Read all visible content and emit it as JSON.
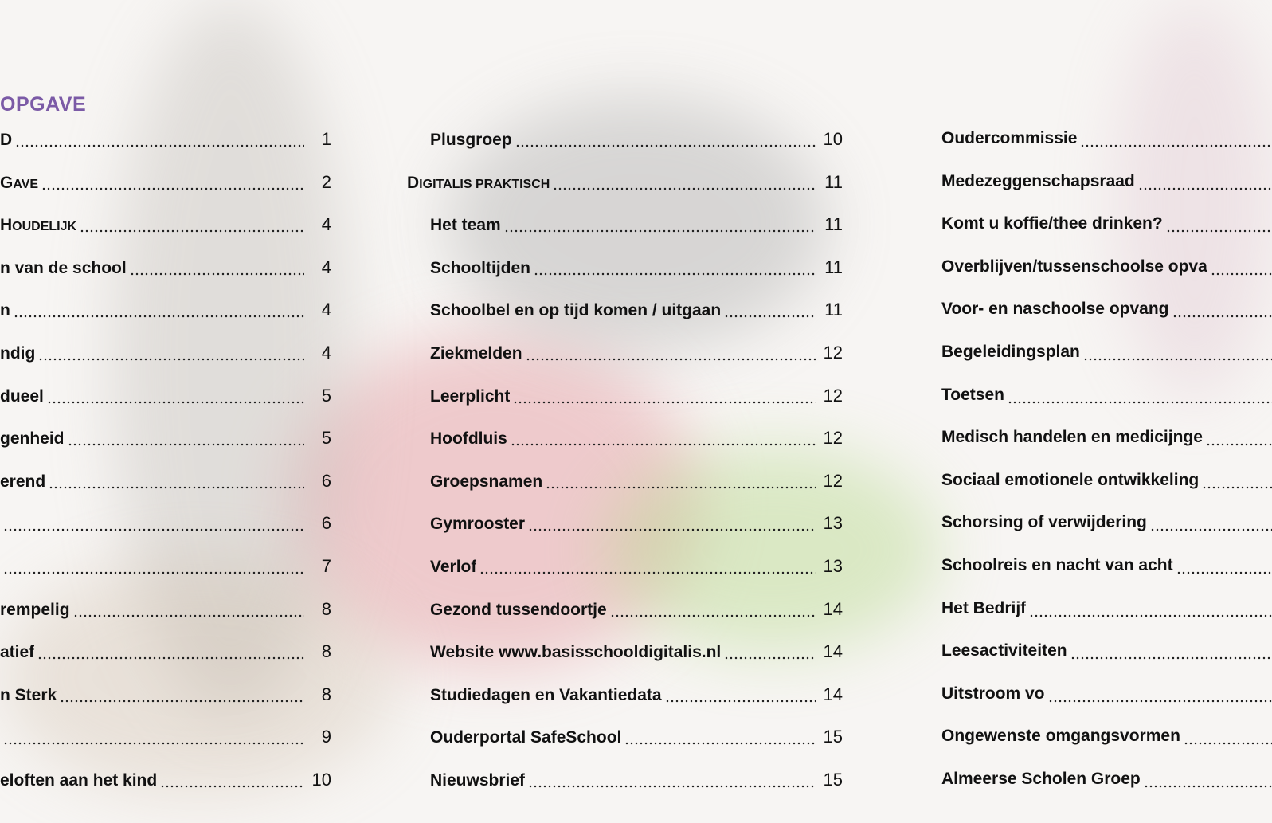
{
  "heading": "OPGAVE",
  "columns": [
    {
      "entries": [
        {
          "section": "D",
          "page": 1
        },
        {
          "section": "GAVE",
          "page": 2
        },
        {
          "section": "HOUDELIJK",
          "page": 4
        },
        {
          "title": "n van de school",
          "page": 4
        },
        {
          "title": "n",
          "page": 4
        },
        {
          "title": "ndig",
          "page": 4
        },
        {
          "title": "dueel",
          "page": 5
        },
        {
          "title": "genheid",
          "page": 5
        },
        {
          "title": "erend",
          "page": 6
        },
        {
          "page": 6
        },
        {
          "page": 7
        },
        {
          "title": "rempelig",
          "page": 8
        },
        {
          "title": "atief",
          "page": 8
        },
        {
          "title": "n Sterk",
          "page": 8
        },
        {
          "page": 9
        },
        {
          "title": "eloften aan het kind",
          "page": 10
        }
      ]
    },
    {
      "entries": [
        {
          "title": "Plusgroep",
          "page": 10
        },
        {
          "section": "DIGITALIS PRAKTISCH",
          "page": 11
        },
        {
          "title": "Het team",
          "page": 11
        },
        {
          "title": "Schooltijden",
          "page": 11
        },
        {
          "title": "Schoolbel en op tijd komen / uitgaan",
          "page": 11
        },
        {
          "title": "Ziekmelden",
          "page": 12
        },
        {
          "title": "Leerplicht",
          "page": 12
        },
        {
          "title": "Hoofdluis",
          "page": 12
        },
        {
          "title": "Groepsnamen",
          "page": 12
        },
        {
          "title": "Gymrooster",
          "page": 13
        },
        {
          "title": "Verlof",
          "page": 13
        },
        {
          "title": "Gezond tussendoortje",
          "page": 14
        },
        {
          "title": "Website www.basisschooldigitalis.nl",
          "page": 14
        },
        {
          "title": "Studiedagen en Vakantiedata",
          "page": 14
        },
        {
          "title": "Ouderportal SafeSchool",
          "page": 15
        },
        {
          "title": "Nieuwsbrief",
          "page": 15
        }
      ]
    },
    {
      "entries": [
        {
          "title": "Oudercommissie"
        },
        {
          "title": "Medezeggenschapsraad"
        },
        {
          "title": "Komt u koffie/thee drinken?"
        },
        {
          "title": "Overblijven/tussenschoolse opva"
        },
        {
          "title": "Voor- en naschoolse opvang"
        },
        {
          "title": "Begeleidingsplan"
        },
        {
          "title": "Toetsen"
        },
        {
          "title": "Medisch handelen en medicijnge"
        },
        {
          "title": "Sociaal emotionele ontwikkeling"
        },
        {
          "title": "Schorsing of verwijdering"
        },
        {
          "title": "Schoolreis en nacht van acht"
        },
        {
          "title": "Het Bedrijf"
        },
        {
          "title": "Leesactiviteiten"
        },
        {
          "title": "Uitstroom vo"
        },
        {
          "title": "Ongewenste omgangsvormen"
        },
        {
          "title": "Almeerse Scholen Groep"
        }
      ]
    }
  ]
}
